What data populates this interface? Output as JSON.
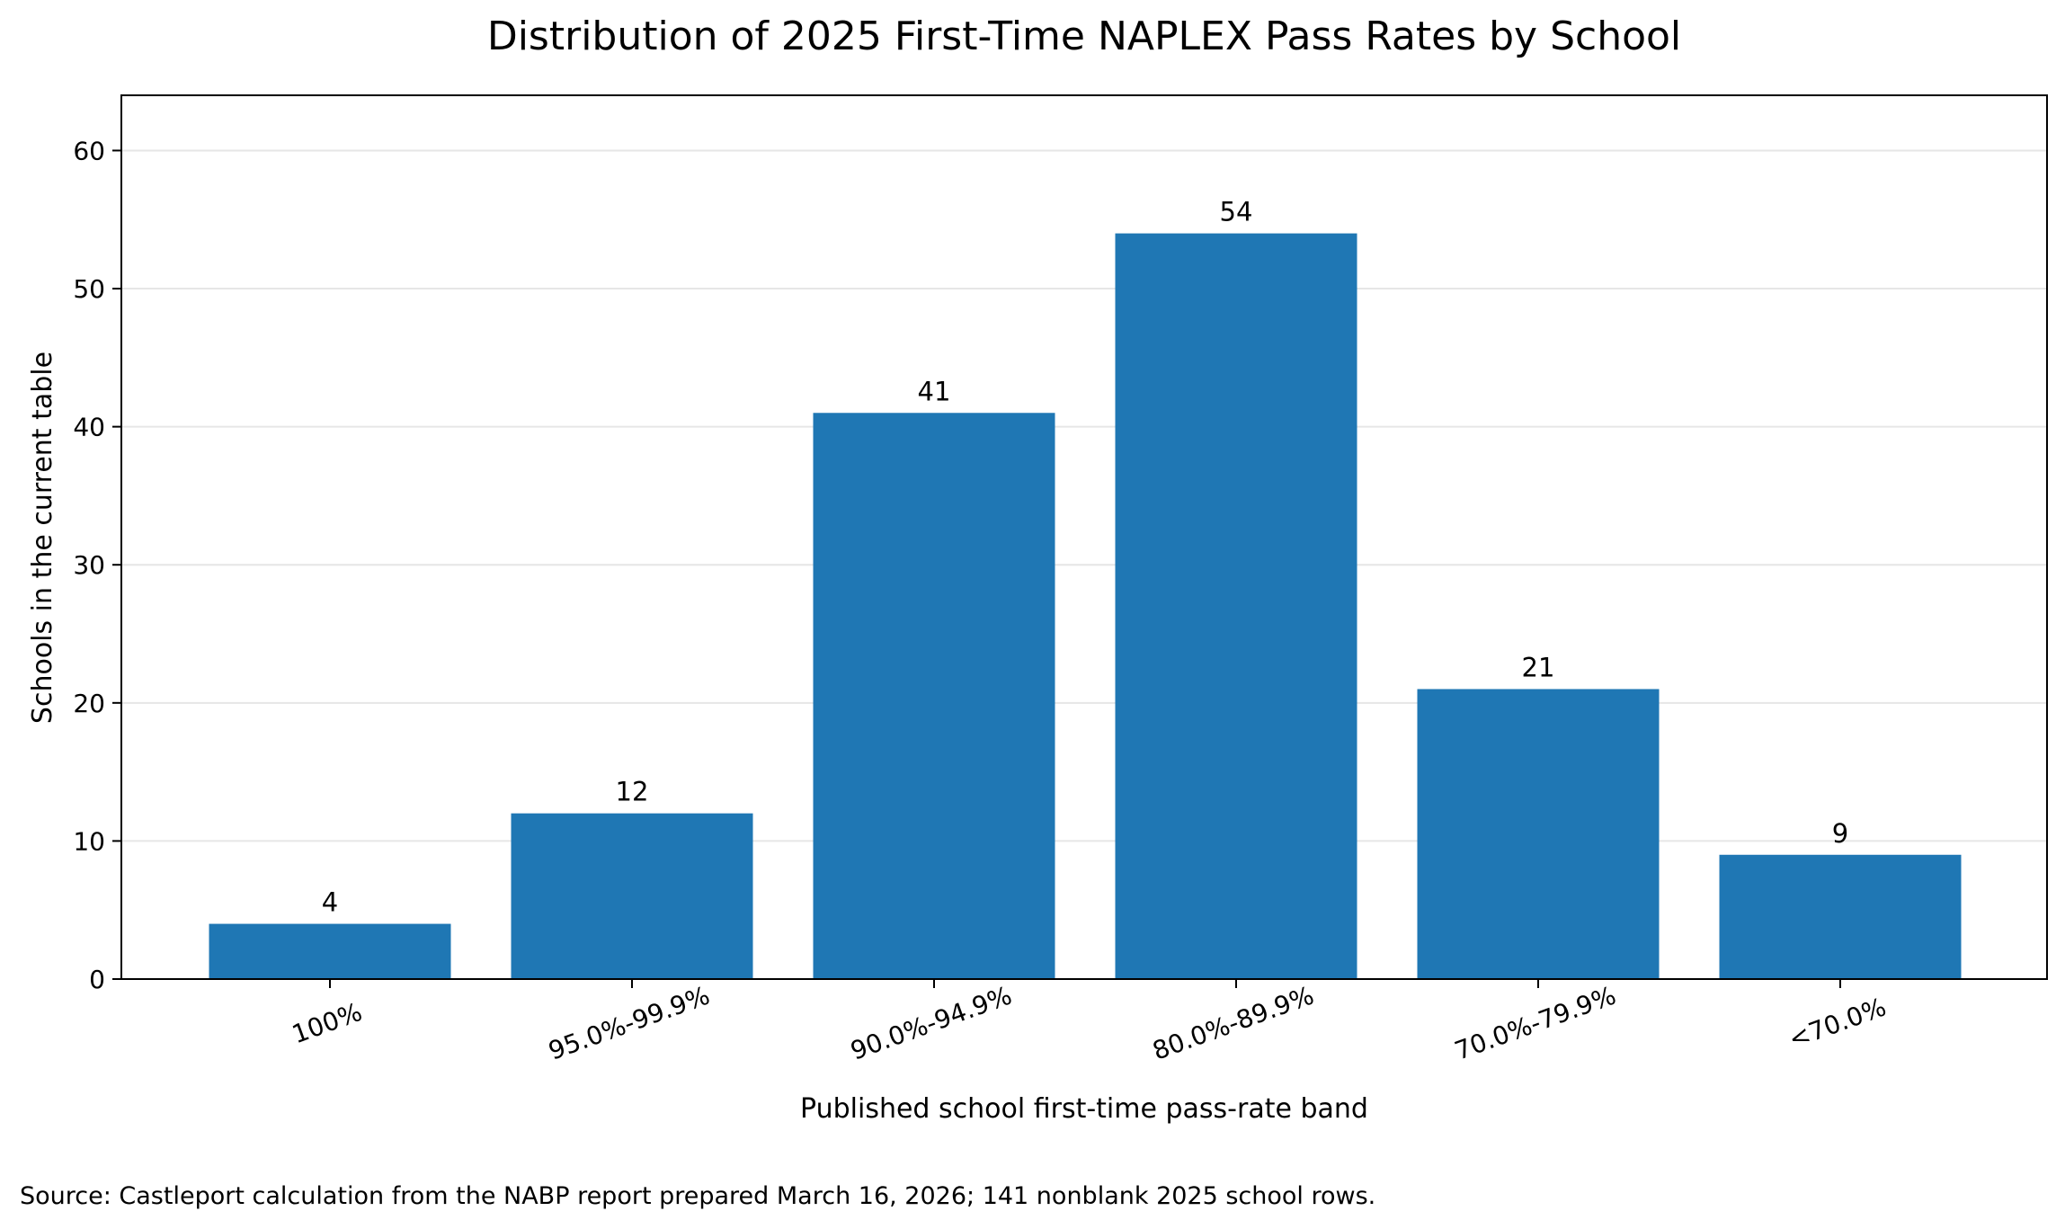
{
  "chart_data": {
    "type": "bar",
    "title": "Distribution of 2025 First-Time NAPLEX Pass Rates by School",
    "xlabel": "Published school first-time pass-rate band",
    "ylabel": "Schools in the current table",
    "categories": [
      "100%",
      "95.0%-99.9%",
      "90.0%-94.9%",
      "80.0%-89.9%",
      "70.0%-79.9%",
      "<70.0%"
    ],
    "values": [
      4,
      12,
      41,
      54,
      21,
      9
    ],
    "data_labels": [
      "4",
      "12",
      "41",
      "54",
      "21",
      "9"
    ],
    "ylim": [
      0,
      64
    ],
    "yticks": [
      0,
      10,
      20,
      30,
      40,
      50,
      60
    ],
    "ytick_labels": [
      "0",
      "10",
      "20",
      "30",
      "40",
      "50",
      "60"
    ],
    "grid": "horizontal",
    "legend": "none",
    "bar_color": "#1f77b4"
  },
  "footer": {
    "source": "Source: Castleport calculation from the NABP report prepared March 16, 2026; 141 nonblank 2025 school rows."
  }
}
